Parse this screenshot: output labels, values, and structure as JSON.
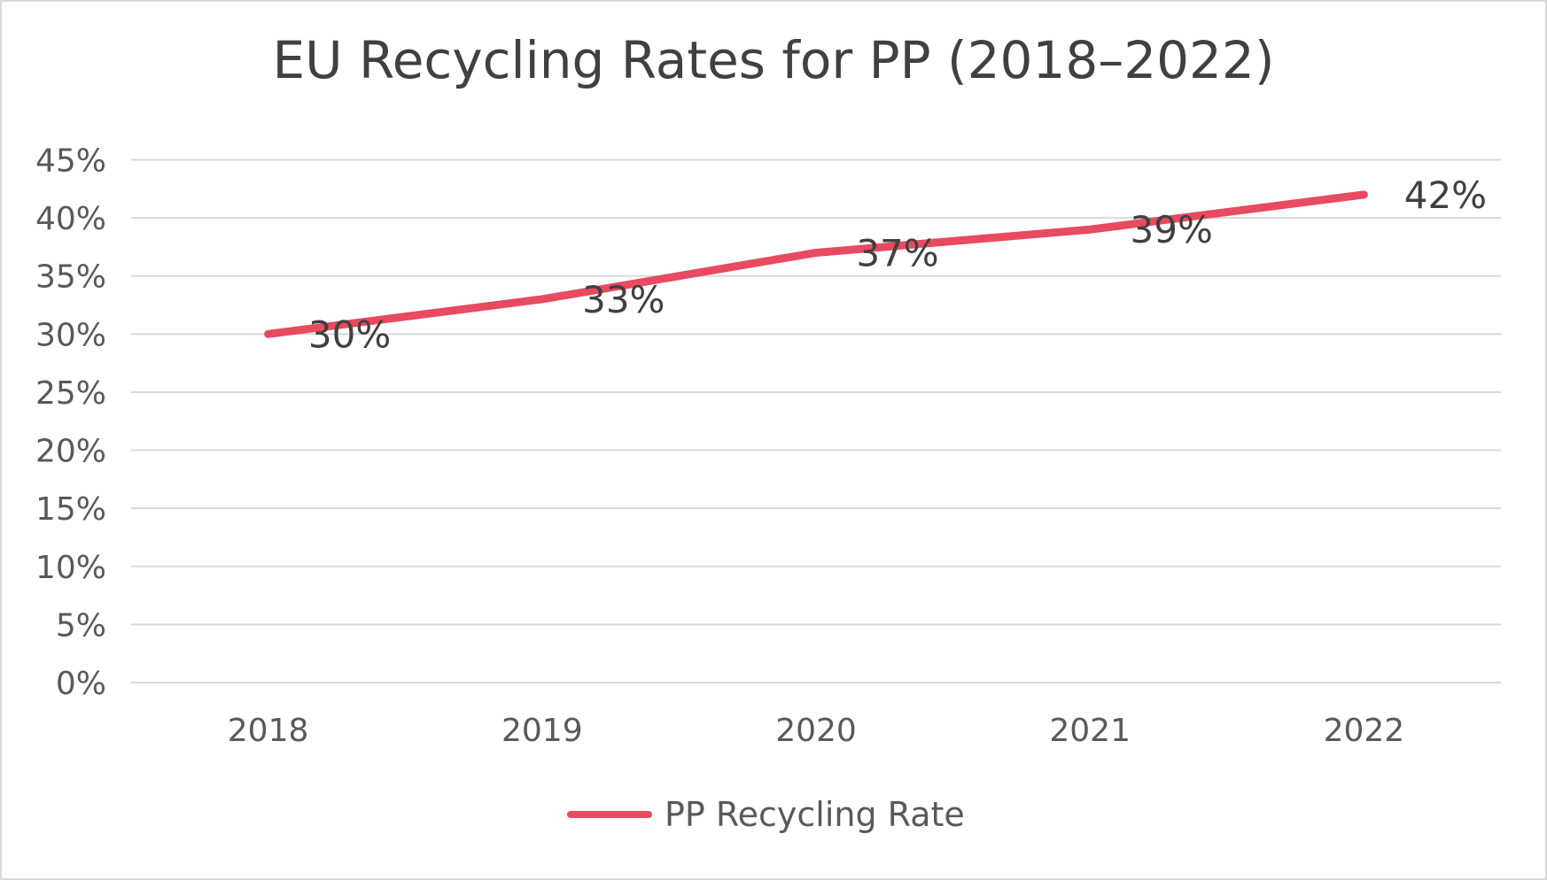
{
  "chart_data": {
    "type": "line",
    "title": "EU Recycling Rates for PP (2018–2022)",
    "categories": [
      "2018",
      "2019",
      "2020",
      "2021",
      "2022"
    ],
    "series": [
      {
        "name": "PP Recycling Rate",
        "values": [
          30,
          33,
          37,
          39,
          42
        ],
        "color": "#E84A5F"
      }
    ],
    "data_labels": [
      "30%",
      "33%",
      "37%",
      "39%",
      "42%"
    ],
    "y_ticks": [
      "0%",
      "5%",
      "10%",
      "15%",
      "20%",
      "25%",
      "30%",
      "35%",
      "40%",
      "45%"
    ],
    "ylim": [
      0,
      45
    ],
    "grid": true,
    "legend_position": "bottom",
    "xlabel": "",
    "ylabel": ""
  }
}
